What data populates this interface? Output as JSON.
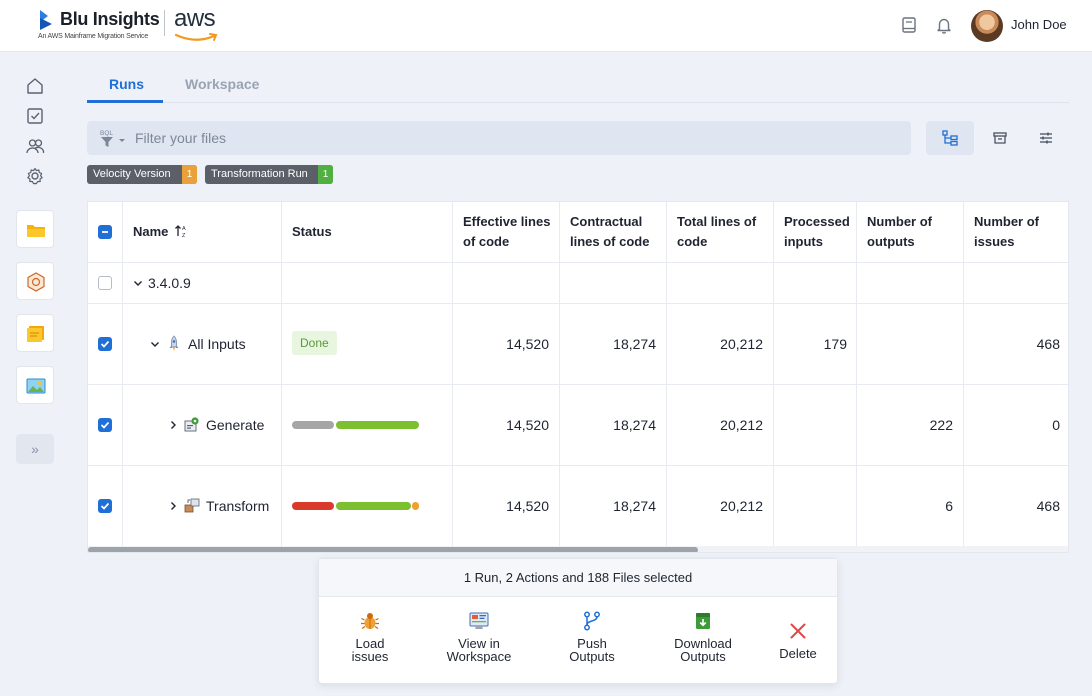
{
  "header": {
    "brand": "Blu Insights",
    "brand_sub": "An AWS Mainframe Migration Service",
    "partner": "aws",
    "user_name": "John Doe"
  },
  "tabs": [
    {
      "label": "Runs",
      "active": true
    },
    {
      "label": "Workspace",
      "active": false
    }
  ],
  "filter": {
    "placeholder": "Filter your files",
    "icon_label": "BQL"
  },
  "chips": [
    {
      "label": "Velocity Version",
      "count": "1"
    },
    {
      "label": "Transformation Run",
      "count": "1"
    }
  ],
  "table": {
    "columns": [
      {
        "label": "Name"
      },
      {
        "label": "Status"
      },
      {
        "label": "Effective lines of code"
      },
      {
        "label": "Contractual lines of code"
      },
      {
        "label": "Total lines of code"
      },
      {
        "label": "Processed inputs"
      },
      {
        "label": "Number of outputs"
      },
      {
        "label": "Number of issues"
      }
    ],
    "rows": [
      {
        "name": "3.4.0.9",
        "checked": false,
        "status": "",
        "effective": "",
        "contractual": "",
        "total": "",
        "processed": "",
        "outputs": "",
        "issues": ""
      },
      {
        "name": "All Inputs",
        "checked": true,
        "status": "Done",
        "effective": "14,520",
        "contractual": "18,274",
        "total": "20,212",
        "processed": "179",
        "outputs": "",
        "issues": "468"
      },
      {
        "name": "Generate",
        "checked": true,
        "status": "",
        "effective": "14,520",
        "contractual": "18,274",
        "total": "20,212",
        "processed": "",
        "outputs": "222",
        "issues": "0"
      },
      {
        "name": "Transform",
        "checked": true,
        "status": "",
        "effective": "14,520",
        "contractual": "18,274",
        "total": "20,212",
        "processed": "",
        "outputs": "6",
        "issues": "468"
      }
    ],
    "status_colors": {
      "gray": "#a6a6a6",
      "green": "#7cbf2f",
      "red": "#d93a2b",
      "orange": "#f0a030"
    }
  },
  "selection": {
    "summary": "1 Run, 2 Actions and 188 Files selected",
    "actions": [
      {
        "line1": "Load",
        "line2": "issues",
        "icon": "bug-icon"
      },
      {
        "line1": "View in",
        "line2": "Workspace",
        "icon": "workspace-icon"
      },
      {
        "line1": "Push",
        "line2": "Outputs",
        "icon": "git-branch-icon"
      },
      {
        "line1": "Download",
        "line2": "Outputs",
        "icon": "download-icon"
      },
      {
        "line1": "Delete",
        "line2": "",
        "icon": "close-icon"
      }
    ]
  },
  "accent_color": "#1f6fd6"
}
